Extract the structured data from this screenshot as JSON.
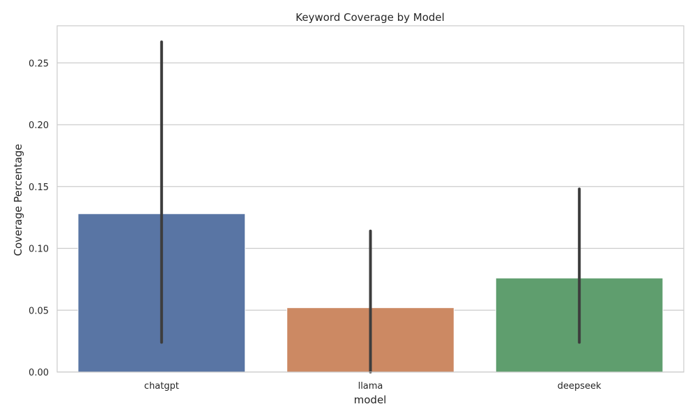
{
  "chart_data": {
    "type": "bar",
    "title": "Keyword Coverage by Model",
    "xlabel": "model",
    "ylabel": "Coverage Percentage",
    "categories": [
      "chatgpt",
      "llama",
      "deepseek"
    ],
    "values": [
      0.128,
      0.052,
      0.076
    ],
    "error_bars": [
      {
        "low": 0.024,
        "high": 0.267
      },
      {
        "low": 0.0,
        "high": 0.114
      },
      {
        "low": 0.024,
        "high": 0.148
      }
    ],
    "ylim": [
      0,
      0.28
    ],
    "yticks": [
      "0.00",
      "0.05",
      "0.10",
      "0.15",
      "0.20",
      "0.25"
    ],
    "ytick_values": [
      0,
      0.05,
      0.1,
      0.15,
      0.2,
      0.25
    ],
    "grid": true,
    "legend": false,
    "colors": [
      "#5975a4",
      "#cc8963",
      "#5f9e6e"
    ],
    "error_bar_color": "#3d3d3d",
    "grid_color": "#cccccc"
  }
}
